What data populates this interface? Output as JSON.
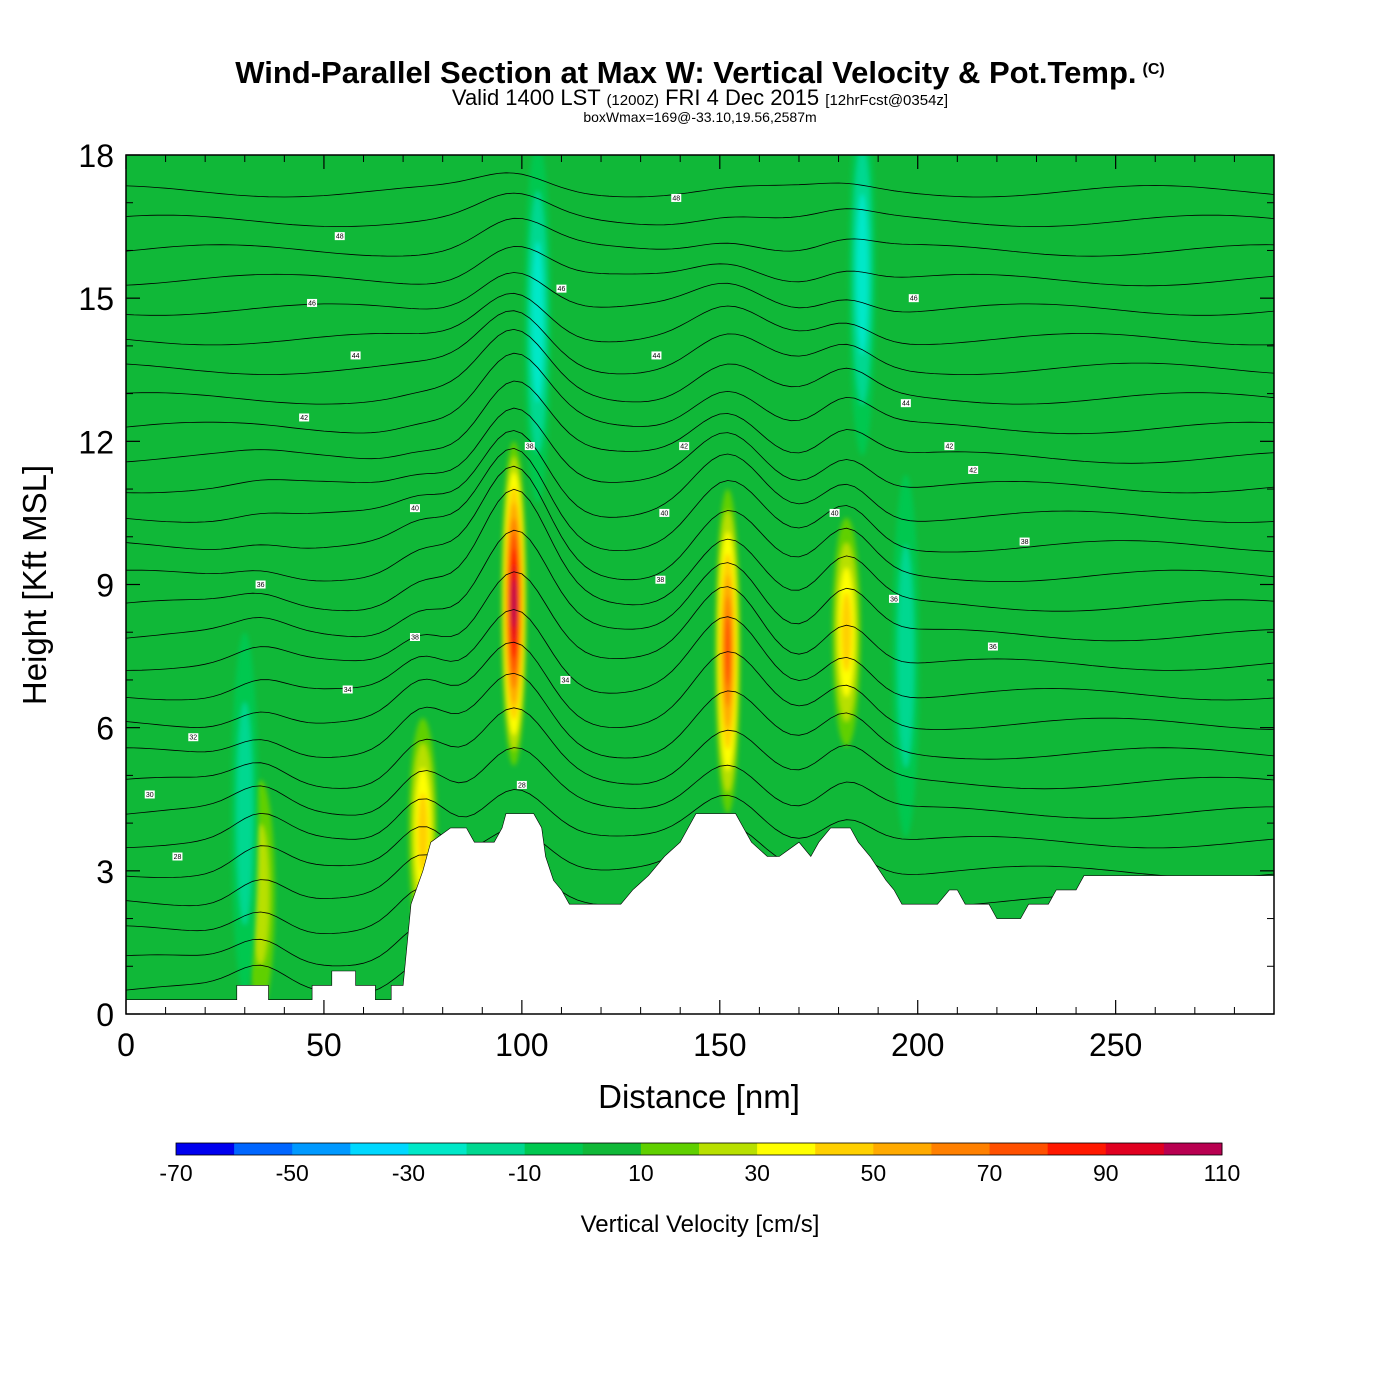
{
  "header": {
    "title": "Wind-Parallel Section at Max W: Vertical Velocity & Pot.Temp.",
    "copyright": "(C)",
    "valid_prefix": "Valid 1400 LST",
    "valid_zulu": "(1200Z)",
    "valid_date": "FRI 4 Dec 2015",
    "forecast": "[12hrFcst@0354z]",
    "box_info": "boxWmax=169@-33.10,19.56,2587m"
  },
  "chart_data": {
    "type": "heatmap",
    "title": "Wind-Parallel Section at Max W: Vertical Velocity & Pot.Temp.",
    "xlabel": "Distance [nm]",
    "ylabel": "Height [Kft MSL]",
    "xlim": [
      0,
      290
    ],
    "ylim": [
      0,
      18
    ],
    "x_ticks": [
      "0",
      "50",
      "100",
      "150",
      "200",
      "250"
    ],
    "y_ticks": [
      "0",
      "3",
      "6",
      "9",
      "12",
      "15",
      "18"
    ],
    "colorbar": {
      "title": "Vertical Velocity [cm/s]",
      "labels": [
        "-70",
        "-50",
        "-30",
        "-10",
        "10",
        "30",
        "50",
        "70",
        "90",
        "110"
      ],
      "colors": [
        "#0000ee",
        "#0066ff",
        "#0099ff",
        "#00d8ff",
        "#00e8c8",
        "#00d890",
        "#00c850",
        "#10b838",
        "#60d000",
        "#b8e000",
        "#ffff00",
        "#ffd000",
        "#ffaa00",
        "#ff8000",
        "#ff5000",
        "#ff1800",
        "#e00020",
        "#b80050"
      ],
      "background": "#10b838"
    },
    "updrafts": [
      {
        "x": 98,
        "y": 8.6,
        "peak": 105
      },
      {
        "x": 152,
        "y": 7.6,
        "peak": 75
      },
      {
        "x": 182,
        "y": 8.0,
        "peak": 45
      },
      {
        "x": 34,
        "y": 2.5,
        "peak": 25
      },
      {
        "x": 75,
        "y": 3.8,
        "peak": 45
      }
    ],
    "downdrafts": [
      {
        "x": 104,
        "y": 14.5,
        "peak": -35
      },
      {
        "x": 186,
        "y": 15.5,
        "peak": -40
      },
      {
        "x": 30,
        "y": 4.2,
        "peak": -30
      },
      {
        "x": 197,
        "y": 7.5,
        "peak": -25
      }
    ],
    "terrain": [
      [
        0,
        0.3
      ],
      [
        28,
        0.3
      ],
      [
        28,
        0.6
      ],
      [
        36,
        0.6
      ],
      [
        36,
        0.3
      ],
      [
        47,
        0.3
      ],
      [
        47,
        0.6
      ],
      [
        52,
        0.6
      ],
      [
        52,
        0.9
      ],
      [
        58,
        0.9
      ],
      [
        58,
        0.6
      ],
      [
        63,
        0.6
      ],
      [
        63,
        0.3
      ],
      [
        67,
        0.3
      ],
      [
        67,
        0.6
      ],
      [
        70,
        0.6
      ],
      [
        72,
        2.3
      ],
      [
        75,
        3.0
      ],
      [
        77,
        3.6
      ],
      [
        82,
        3.9
      ],
      [
        86,
        3.9
      ],
      [
        88,
        3.6
      ],
      [
        93,
        3.6
      ],
      [
        95,
        3.9
      ],
      [
        96,
        4.2
      ],
      [
        103,
        4.2
      ],
      [
        105,
        3.9
      ],
      [
        106,
        3.3
      ],
      [
        108,
        2.8
      ],
      [
        110,
        2.6
      ],
      [
        112,
        2.3
      ],
      [
        125,
        2.3
      ],
      [
        128,
        2.6
      ],
      [
        132,
        2.9
      ],
      [
        136,
        3.3
      ],
      [
        140,
        3.6
      ],
      [
        142,
        3.9
      ],
      [
        144,
        4.2
      ],
      [
        154,
        4.2
      ],
      [
        156,
        3.9
      ],
      [
        158,
        3.6
      ],
      [
        162,
        3.3
      ],
      [
        165,
        3.3
      ],
      [
        170,
        3.6
      ],
      [
        173,
        3.3
      ],
      [
        175,
        3.6
      ],
      [
        178,
        3.9
      ],
      [
        183,
        3.9
      ],
      [
        185,
        3.6
      ],
      [
        188,
        3.3
      ],
      [
        192,
        2.8
      ],
      [
        194,
        2.6
      ],
      [
        196,
        2.3
      ],
      [
        205,
        2.3
      ],
      [
        208,
        2.6
      ],
      [
        210,
        2.6
      ],
      [
        212,
        2.3
      ],
      [
        218,
        2.3
      ],
      [
        220,
        2.0
      ],
      [
        226,
        2.0
      ],
      [
        228,
        2.3
      ],
      [
        233,
        2.3
      ],
      [
        235,
        2.6
      ],
      [
        240,
        2.6
      ],
      [
        242,
        2.9
      ],
      [
        290,
        2.9
      ]
    ],
    "isentrope_base": [
      {
        "x": 13,
        "y": 3.3,
        "label": "28"
      },
      {
        "x": 6,
        "y": 4.6,
        "label": "30"
      },
      {
        "x": 17,
        "y": 5.8,
        "label": "32"
      },
      {
        "x": 56,
        "y": 6.8,
        "label": "34"
      },
      {
        "x": 34,
        "y": 9.0,
        "label": "36"
      },
      {
        "x": 73,
        "y": 10.6,
        "label": "40"
      },
      {
        "x": 45,
        "y": 12.5,
        "label": "42"
      },
      {
        "x": 58,
        "y": 13.8,
        "label": "44"
      },
      {
        "x": 47,
        "y": 14.9,
        "label": "46"
      },
      {
        "x": 54,
        "y": 16.3,
        "label": "48"
      }
    ],
    "isentrope_labels": [
      {
        "x": 100,
        "y": 4.8,
        "label": "28"
      },
      {
        "x": 111,
        "y": 7.0,
        "label": "34"
      },
      {
        "x": 73,
        "y": 7.9,
        "label": "38"
      },
      {
        "x": 135,
        "y": 9.1,
        "label": "38"
      },
      {
        "x": 102,
        "y": 11.9,
        "label": "38"
      },
      {
        "x": 136,
        "y": 10.5,
        "label": "40"
      },
      {
        "x": 141,
        "y": 11.9,
        "label": "42"
      },
      {
        "x": 134,
        "y": 13.8,
        "label": "44"
      },
      {
        "x": 110,
        "y": 15.2,
        "label": "46"
      },
      {
        "x": 139,
        "y": 17.1,
        "label": "48"
      },
      {
        "x": 179,
        "y": 10.5,
        "label": "40"
      },
      {
        "x": 194,
        "y": 8.7,
        "label": "36"
      },
      {
        "x": 219,
        "y": 7.7,
        "label": "36"
      },
      {
        "x": 197,
        "y": 12.8,
        "label": "44"
      },
      {
        "x": 199,
        "y": 15.0,
        "label": "46"
      },
      {
        "x": 208,
        "y": 11.9,
        "label": "42"
      },
      {
        "x": 214,
        "y": 11.4,
        "label": "42"
      },
      {
        "x": 227,
        "y": 9.9,
        "label": "38"
      }
    ]
  }
}
